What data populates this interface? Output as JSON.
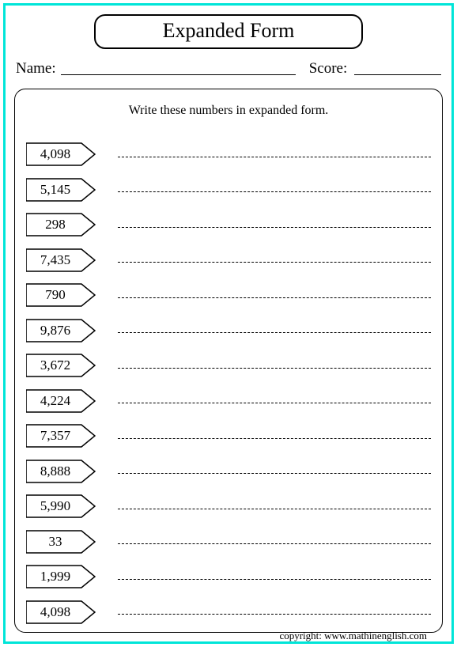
{
  "title": "Expanded Form",
  "name_label": "Name: ",
  "score_label": " Score: ",
  "instruction": "Write these numbers in expanded form.",
  "numbers": [
    "4,098",
    "5,145",
    "298",
    "7,435",
    "790",
    "9,876",
    "3,672",
    "4,224",
    "7,357",
    "8,888",
    "5,990",
    "33",
    "1,999",
    "4,098"
  ],
  "copyright": "copyright:    www.mathinenglish.com",
  "colors": {
    "border": "#00e5d8",
    "line": "#000000",
    "background": "#ffffff"
  }
}
